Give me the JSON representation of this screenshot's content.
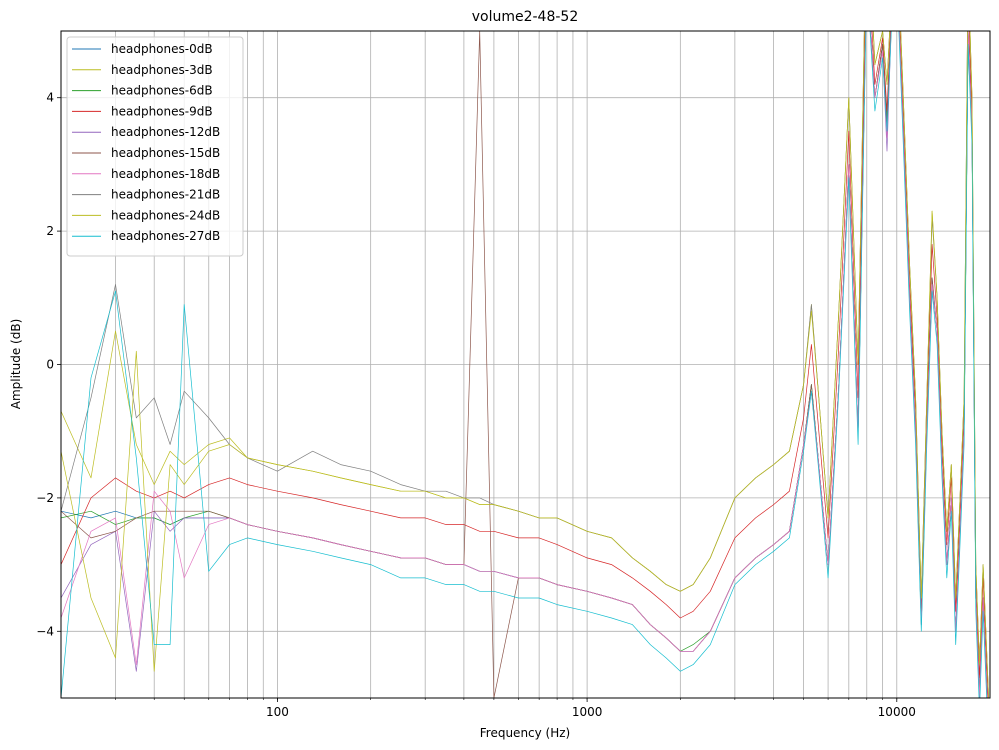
{
  "chart_data": {
    "type": "line",
    "title": "volume2-48-52",
    "xlabel": "Frequency (Hz)",
    "ylabel": "Amplitude (dB)",
    "xscale": "log",
    "xlim": [
      20,
      20000
    ],
    "ylim": [
      -5,
      5
    ],
    "grid": true,
    "legend_position": "top-left",
    "x_ticks": [
      {
        "value": 100,
        "label": "100"
      },
      {
        "value": 1000,
        "label": "1000"
      },
      {
        "value": 10000,
        "label": "10000"
      }
    ],
    "y_ticks": [
      {
        "value": -4,
        "label": "−4"
      },
      {
        "value": -2,
        "label": "−2"
      },
      {
        "value": 0,
        "label": "0"
      },
      {
        "value": 2,
        "label": "2"
      },
      {
        "value": 4,
        "label": "4"
      }
    ],
    "x": [
      20,
      25,
      30,
      35,
      40,
      45,
      50,
      60,
      70,
      80,
      100,
      130,
      160,
      200,
      250,
      300,
      350,
      400,
      450,
      500,
      600,
      700,
      800,
      1000,
      1200,
      1400,
      1600,
      1800,
      2000,
      2200,
      2500,
      3000,
      3500,
      4000,
      4500,
      5000,
      5300,
      5600,
      6000,
      6500,
      7000,
      7500,
      8000,
      8500,
      9000,
      9300,
      9600,
      10000,
      10500,
      11000,
      11500,
      12000,
      12500,
      13000,
      13500,
      14000,
      14500,
      15000,
      15500,
      16000,
      16500,
      17000,
      17500,
      18000,
      18500,
      19000,
      20000
    ],
    "series": [
      {
        "name": "headphones-0dB",
        "color": "#1f77b4",
        "values": [
          -2.2,
          -2.3,
          -2.2,
          -2.3,
          -2.3,
          -2.4,
          -2.3,
          -2.3,
          -2.3,
          -2.4,
          -2.5,
          -2.6,
          -2.7,
          -2.8,
          -2.9,
          -2.9,
          -3.0,
          -3.0,
          -3.1,
          -3.1,
          -3.2,
          -3.2,
          -3.3,
          -3.4,
          -3.5,
          -3.6,
          -3.9,
          -4.1,
          -4.3,
          -4.3,
          -4.0,
          -3.2,
          -2.9,
          -2.7,
          -2.5,
          -1.2,
          -0.3,
          -1.5,
          -3.0,
          -0.3,
          3.0,
          -1.0,
          6.0,
          4.0,
          4.8,
          3.6,
          5.2,
          6.0,
          3.5,
          1.0,
          -1.0,
          -3.8,
          -1.0,
          1.3,
          0.5,
          -1.5,
          -3.0,
          -2.0,
          -4.0,
          -2.5,
          -1.0,
          5.0,
          3.5,
          -3.5,
          -5.0,
          -3.5,
          -6.0
        ]
      },
      {
        "name": "headphones-3dB",
        "color": "#bcbd22",
        "values": [
          -0.7,
          -1.7,
          0.5,
          -1.2,
          -1.8,
          -1.3,
          -1.5,
          -1.2,
          -1.1,
          -1.4,
          -1.5,
          -1.6,
          -1.7,
          -1.8,
          -1.9,
          -1.9,
          -2.0,
          -2.0,
          -2.1,
          -2.1,
          -2.2,
          -2.3,
          -2.3,
          -2.5,
          -2.6,
          -2.9,
          -3.1,
          -3.3,
          -3.4,
          -3.3,
          -2.9,
          -2.0,
          -1.7,
          -1.5,
          -1.3,
          -0.3,
          0.9,
          -0.5,
          -2.3,
          0.8,
          4.0,
          0.0,
          7.0,
          4.5,
          5.0,
          4.2,
          5.5,
          6.5,
          4.0,
          1.5,
          -0.5,
          -3.5,
          -0.5,
          2.3,
          1.0,
          -1.0,
          -2.5,
          -1.5,
          -3.5,
          -2.0,
          -0.5,
          6.0,
          4.0,
          -3.0,
          -4.5,
          -3.0,
          -5.5
        ]
      },
      {
        "name": "headphones-6dB",
        "color": "#2ca02c",
        "values": [
          -2.3,
          -2.2,
          -2.4,
          -2.3,
          -2.3,
          -2.4,
          -2.3,
          -2.2,
          -2.3,
          -2.4,
          -2.5,
          -2.6,
          -2.7,
          -2.8,
          -2.9,
          -2.9,
          -3.0,
          -3.0,
          -3.1,
          -3.1,
          -3.2,
          -3.2,
          -3.3,
          -3.4,
          -3.5,
          -3.6,
          -3.9,
          -4.1,
          -4.3,
          -4.2,
          -4.0,
          -3.2,
          -2.9,
          -2.7,
          -2.5,
          -1.2,
          -0.3,
          -1.5,
          -3.0,
          -0.3,
          3.0,
          -1.0,
          6.0,
          4.0,
          4.8,
          3.7,
          5.2,
          6.0,
          3.5,
          1.0,
          -1.0,
          -3.9,
          -1.0,
          1.2,
          0.5,
          -1.5,
          -3.0,
          -2.0,
          -4.0,
          -2.5,
          -1.0,
          5.0,
          3.5,
          -3.5,
          -5.0,
          -3.5,
          -6.0
        ]
      },
      {
        "name": "headphones-9dB",
        "color": "#d62728",
        "values": [
          -3.0,
          -2.0,
          -1.7,
          -1.9,
          -2.0,
          -1.9,
          -2.0,
          -1.8,
          -1.7,
          -1.8,
          -1.9,
          -2.0,
          -2.1,
          -2.2,
          -2.3,
          -2.3,
          -2.4,
          -2.4,
          -2.5,
          -2.5,
          -2.6,
          -2.6,
          -2.7,
          -2.9,
          -3.0,
          -3.2,
          -3.4,
          -3.6,
          -3.8,
          -3.7,
          -3.4,
          -2.6,
          -2.3,
          -2.1,
          -1.9,
          -0.8,
          0.3,
          -1.0,
          -2.6,
          0.3,
          3.5,
          -0.5,
          6.5,
          4.2,
          4.9,
          3.8,
          5.3,
          6.2,
          3.7,
          1.2,
          -0.7,
          -3.6,
          -0.7,
          1.8,
          0.7,
          -1.2,
          -2.7,
          -1.7,
          -3.7,
          -2.2,
          -0.7,
          5.5,
          3.7,
          -3.2,
          -4.7,
          -3.2,
          -5.7
        ]
      },
      {
        "name": "headphones-12dB",
        "color": "#9467bd",
        "values": [
          -3.5,
          -2.7,
          -2.5,
          -4.6,
          -2.2,
          -2.5,
          -2.3,
          -2.3,
          -2.3,
          -2.4,
          -2.5,
          -2.6,
          -2.7,
          -2.8,
          -2.9,
          -2.9,
          -3.0,
          -3.0,
          -3.1,
          -3.1,
          -3.2,
          -3.2,
          -3.3,
          -3.4,
          -3.5,
          -3.6,
          -3.9,
          -4.1,
          -4.3,
          -4.3,
          -4.0,
          -3.2,
          -2.9,
          -2.7,
          -2.5,
          -1.2,
          -0.4,
          -1.5,
          -3.0,
          -0.3,
          3.0,
          -1.0,
          6.0,
          4.0,
          4.7,
          3.2,
          5.1,
          6.0,
          3.5,
          1.0,
          -1.0,
          -3.9,
          -1.0,
          1.2,
          0.5,
          -1.5,
          -3.0,
          -2.0,
          -4.0,
          -2.5,
          -1.0,
          5.0,
          3.5,
          -3.5,
          -5.0,
          -3.5,
          -6.0
        ]
      },
      {
        "name": "headphones-15dB",
        "color": "#8c564b",
        "values": [
          -2.2,
          -2.6,
          -2.5,
          -2.3,
          -2.2,
          -2.2,
          -2.2,
          -2.2,
          -2.3,
          -2.4,
          -2.5,
          -2.6,
          -2.7,
          -2.8,
          -2.9,
          -2.9,
          -3.0,
          -3.0,
          5.0,
          -5.0,
          -3.2,
          -3.2,
          -3.3,
          -3.4,
          -3.5,
          -3.6,
          -3.9,
          -4.1,
          -4.3,
          -4.3,
          -4.0,
          -3.2,
          -2.9,
          -2.7,
          -2.5,
          -1.2,
          -0.3,
          -1.5,
          -3.0,
          -0.3,
          3.0,
          -1.0,
          6.0,
          4.0,
          4.8,
          3.6,
          5.2,
          6.0,
          3.5,
          1.0,
          -1.0,
          -3.8,
          -1.0,
          1.3,
          0.5,
          -1.5,
          -3.0,
          -2.0,
          -4.0,
          -2.5,
          -1.0,
          5.0,
          3.5,
          -3.5,
          -5.0,
          -3.5,
          -6.0
        ]
      },
      {
        "name": "headphones-18dB",
        "color": "#e377c2",
        "values": [
          -3.8,
          -2.5,
          -2.3,
          -4.5,
          -1.9,
          -2.2,
          -3.2,
          -2.4,
          -2.3,
          -2.4,
          -2.5,
          -2.6,
          -2.7,
          -2.8,
          -2.9,
          -2.9,
          -3.0,
          -3.0,
          -3.1,
          -3.1,
          -3.2,
          -3.2,
          -3.3,
          -3.4,
          -3.5,
          -3.6,
          -3.9,
          -4.1,
          -4.3,
          -4.3,
          -4.0,
          -3.2,
          -2.9,
          -2.7,
          -2.5,
          -1.2,
          -0.4,
          -1.5,
          -3.0,
          -0.3,
          3.0,
          -1.0,
          6.0,
          4.0,
          4.7,
          3.4,
          5.1,
          6.0,
          3.5,
          1.0,
          -1.0,
          -3.9,
          -1.0,
          1.2,
          0.5,
          -1.5,
          -3.0,
          -2.0,
          -4.0,
          -2.5,
          -1.0,
          5.0,
          3.5,
          -3.5,
          -5.0,
          -3.5,
          -6.0
        ]
      },
      {
        "name": "headphones-21dB",
        "color": "#7f7f7f",
        "values": [
          -2.2,
          -0.5,
          1.2,
          -0.8,
          -0.5,
          -1.2,
          -0.4,
          -0.8,
          -1.2,
          -1.4,
          -1.6,
          -1.3,
          -1.5,
          -1.6,
          -1.8,
          -1.9,
          -1.9,
          -2.0,
          -2.0,
          -2.1,
          -2.2,
          -2.3,
          -2.3,
          -2.5,
          -2.6,
          -2.9,
          -3.1,
          -3.3,
          -3.4,
          -3.3,
          -2.9,
          -2.0,
          -1.7,
          -1.5,
          -1.3,
          -0.3,
          0.9,
          -0.5,
          -2.3,
          0.8,
          4.0,
          0.0,
          7.0,
          4.5,
          5.0,
          4.2,
          5.5,
          6.5,
          4.0,
          1.5,
          -0.5,
          -3.5,
          -0.5,
          2.2,
          1.0,
          -1.0,
          -2.5,
          -1.5,
          -3.5,
          -2.0,
          -0.5,
          6.0,
          4.0,
          -3.0,
          -4.5,
          -3.0,
          -5.5
        ]
      },
      {
        "name": "headphones-24dB",
        "color": "#bcbd22",
        "values": [
          -1.3,
          -3.5,
          -4.4,
          0.2,
          -4.6,
          -1.5,
          -1.8,
          -1.3,
          -1.2,
          -1.4,
          -1.5,
          -1.6,
          -1.7,
          -1.8,
          -1.9,
          -1.9,
          -2.0,
          -2.0,
          -2.1,
          -2.1,
          -2.2,
          -2.3,
          -2.3,
          -2.5,
          -2.6,
          -2.9,
          -3.1,
          -3.3,
          -3.4,
          -3.3,
          -2.9,
          -2.0,
          -1.7,
          -1.5,
          -1.3,
          -0.3,
          0.8,
          -0.5,
          -2.3,
          0.8,
          4.0,
          0.0,
          7.0,
          4.5,
          5.0,
          4.2,
          5.5,
          6.5,
          4.0,
          1.5,
          -0.5,
          -3.5,
          -0.5,
          2.3,
          1.0,
          -1.0,
          -2.5,
          -1.5,
          -3.5,
          -2.0,
          -0.5,
          6.0,
          4.0,
          -3.0,
          -4.5,
          -3.0,
          -5.5
        ]
      },
      {
        "name": "headphones-27dB",
        "color": "#17becf",
        "values": [
          -5.0,
          -0.2,
          1.1,
          -1.4,
          -4.2,
          -4.2,
          0.9,
          -3.1,
          -2.7,
          -2.6,
          -2.7,
          -2.8,
          -2.9,
          -3.0,
          -3.2,
          -3.2,
          -3.3,
          -3.3,
          -3.4,
          -3.4,
          -3.5,
          -3.5,
          -3.6,
          -3.7,
          -3.8,
          -3.9,
          -4.2,
          -4.4,
          -4.6,
          -4.5,
          -4.2,
          -3.3,
          -3.0,
          -2.8,
          -2.6,
          -1.3,
          -0.4,
          -1.6,
          -3.2,
          -0.4,
          2.8,
          -1.2,
          5.8,
          3.8,
          4.6,
          3.5,
          5.0,
          5.8,
          3.3,
          0.8,
          -1.2,
          -4.0,
          -1.2,
          1.1,
          0.3,
          -1.7,
          -3.2,
          -2.2,
          -4.2,
          -2.7,
          -1.2,
          4.8,
          3.3,
          -3.7,
          -5.2,
          -3.7,
          -6.2
        ]
      }
    ]
  }
}
